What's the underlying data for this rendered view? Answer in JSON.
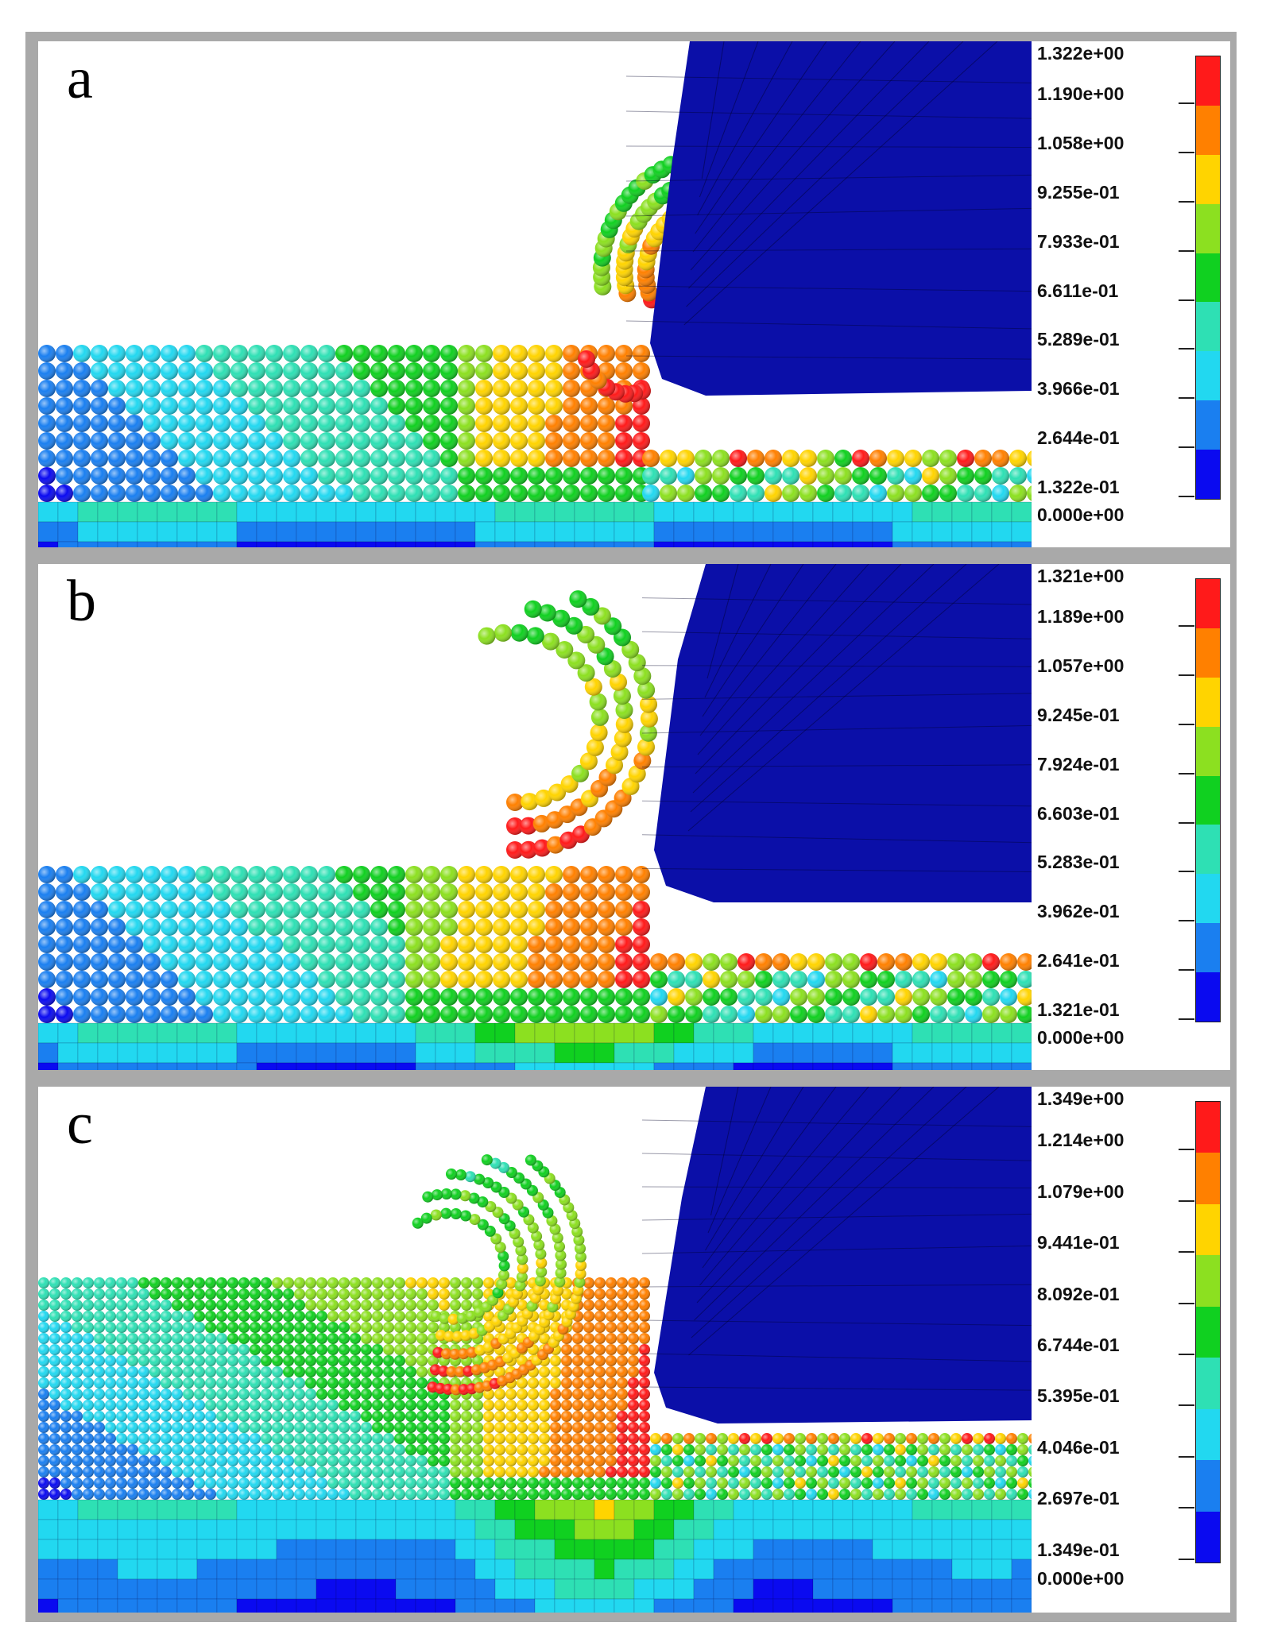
{
  "colormap": [
    "#0a0af0",
    "#1a7ff0",
    "#22d8f0",
    "#2ee0b4",
    "#10d020",
    "#8ce020",
    "#ffd400",
    "#ff8000",
    "#ff1a1a"
  ],
  "colors": {
    "tool": "#0b0fa8",
    "background": "#ffffff",
    "frame": "#a9a9a9"
  },
  "panels": [
    {
      "label": "a",
      "legend_labels": [
        "1.322e+00",
        "1.190e+00",
        "1.058e+00",
        "9.255e-01",
        "7.933e-01",
        "6.611e-01",
        "5.289e-01",
        "3.966e-01",
        "2.644e-01",
        "1.322e-01",
        "0.000e+00"
      ]
    },
    {
      "label": "b",
      "legend_labels": [
        "1.321e+00",
        "1.189e+00",
        "1.057e+00",
        "9.245e-01",
        "7.924e-01",
        "6.603e-01",
        "5.283e-01",
        "3.962e-01",
        "2.641e-01",
        "1.321e-01",
        "0.000e+00"
      ]
    },
    {
      "label": "c",
      "legend_labels": [
        "1.349e+00",
        "1.214e+00",
        "1.079e+00",
        "9.441e-01",
        "8.092e-01",
        "6.744e-01",
        "5.395e-01",
        "4.046e-01",
        "2.697e-01",
        "1.349e-01",
        "0.000e+00"
      ]
    }
  ]
}
